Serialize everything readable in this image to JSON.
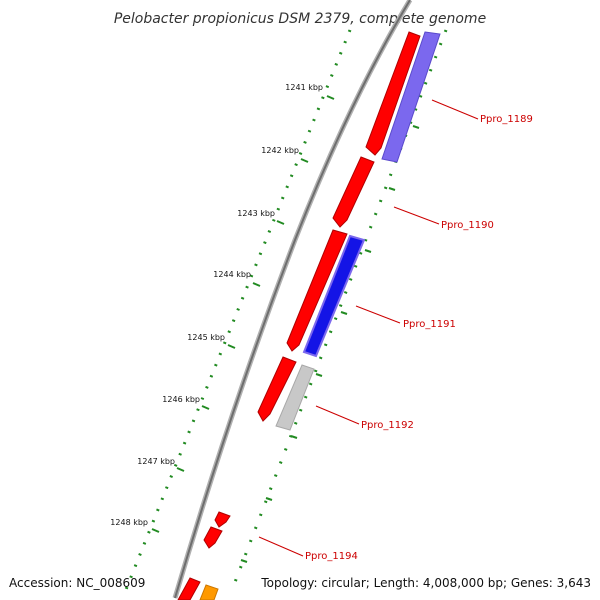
{
  "title": "Pelobacter propionicus DSM 2379, complete genome",
  "footer": {
    "accession": "Accession: NC_008609",
    "topology": "Topology: circular; Length: 4,008,000 bp; Genes: 3,643"
  },
  "ticks": [
    "1241 kbp",
    "1242 kbp",
    "1243 kbp",
    "1244 kbp",
    "1245 kbp",
    "1246 kbp",
    "1247 kbp",
    "1248 kbp"
  ],
  "gene_labels": [
    "Ppro_1189",
    "Ppro_1190",
    "Ppro_1191",
    "Ppro_1192",
    "Ppro_1194"
  ],
  "colors": {
    "backbone": "#888888",
    "tick": "#228b22",
    "cds": "#ff0000",
    "track_purple": "#7b68ee",
    "track_blue": "#1414e6",
    "track_gray": "#c8c8c8",
    "track_orange": "#ff9900",
    "label": "#cc0000"
  }
}
